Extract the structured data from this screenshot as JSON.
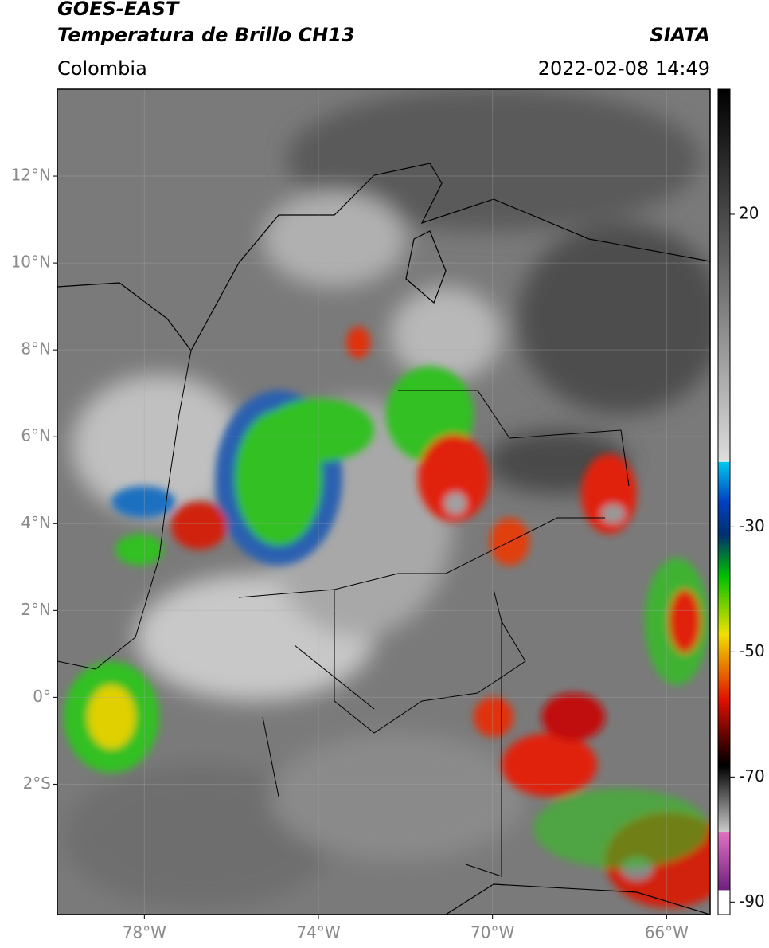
{
  "header": {
    "title_line1": "GOES-EAST",
    "title_line2": "Temperatura de Brillo CH13",
    "region": "Colombia",
    "agency": "SIATA",
    "datetime": "2022-02-08 14:49"
  },
  "map": {
    "xlim": [
      -80,
      -65
    ],
    "ylim": [
      -5,
      14
    ],
    "xticks": [
      {
        "value": -78,
        "label": "78°W"
      },
      {
        "value": -74,
        "label": "74°W"
      },
      {
        "value": -70,
        "label": "70°W"
      },
      {
        "value": -66,
        "label": "66°W"
      }
    ],
    "yticks": [
      {
        "value": 12,
        "label": "12°N"
      },
      {
        "value": 10,
        "label": "10°N"
      },
      {
        "value": 8,
        "label": "8°N"
      },
      {
        "value": 6,
        "label": "6°N"
      },
      {
        "value": 4,
        "label": "4°N"
      },
      {
        "value": 2,
        "label": "2°N"
      },
      {
        "value": 0,
        "label": "0°"
      },
      {
        "value": -2,
        "label": "2°S"
      }
    ]
  },
  "colorbar": {
    "lim": [
      -92,
      40
    ],
    "ticks": [
      20,
      -30,
      -50,
      -70,
      -90
    ]
  }
}
